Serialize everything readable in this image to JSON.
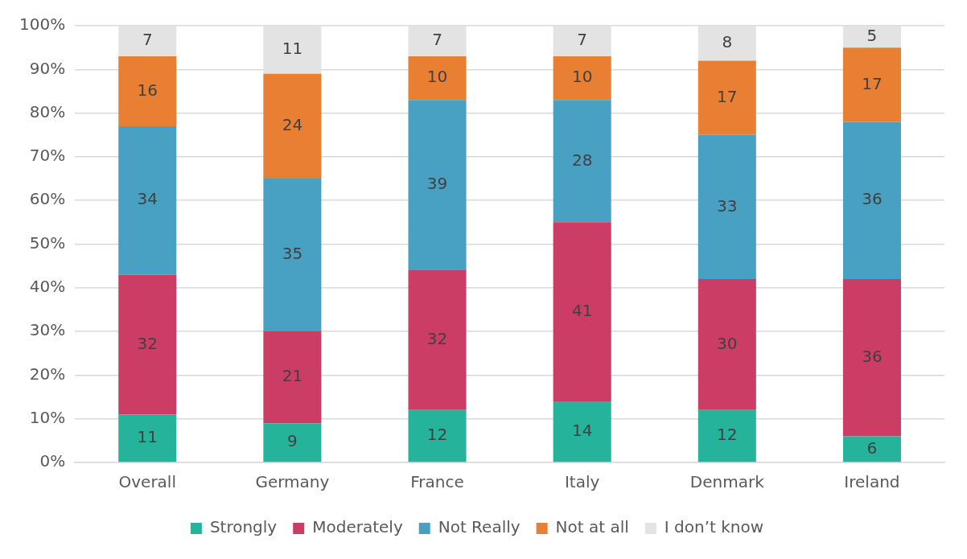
{
  "chart_data": {
    "type": "bar",
    "stacked": true,
    "categories": [
      "Overall",
      "Germany",
      "France",
      "Italy",
      "Denmark",
      "Ireland"
    ],
    "series": [
      {
        "name": "Strongly",
        "color": "#26b39c",
        "values": [
          11,
          9,
          12,
          14,
          12,
          6
        ]
      },
      {
        "name": "Moderately",
        "color": "#cc3d66",
        "values": [
          32,
          21,
          32,
          41,
          30,
          36
        ]
      },
      {
        "name": "Not Really",
        "color": "#48a1c2",
        "values": [
          34,
          35,
          39,
          28,
          33,
          36
        ]
      },
      {
        "name": "Not at all",
        "color": "#e87f33",
        "values": [
          16,
          24,
          10,
          10,
          17,
          17
        ]
      },
      {
        "name": "I don’t know",
        "color": "#e3e3e3",
        "values": [
          7,
          11,
          7,
          7,
          8,
          5
        ]
      }
    ],
    "ylim": [
      0,
      100
    ],
    "yticks": [
      {
        "value": 0,
        "label": "0%"
      },
      {
        "value": 10,
        "label": "10%"
      },
      {
        "value": 20,
        "label": "20%"
      },
      {
        "value": 30,
        "label": "30%"
      },
      {
        "value": 40,
        "label": "40%"
      },
      {
        "value": 50,
        "label": "50%"
      },
      {
        "value": 60,
        "label": "60%"
      },
      {
        "value": 70,
        "label": "70%"
      },
      {
        "value": 80,
        "label": "80%"
      },
      {
        "value": 90,
        "label": "90%"
      },
      {
        "value": 100,
        "label": "100%"
      }
    ],
    "grid": "y",
    "legend": "bottom",
    "data_labels": true
  }
}
